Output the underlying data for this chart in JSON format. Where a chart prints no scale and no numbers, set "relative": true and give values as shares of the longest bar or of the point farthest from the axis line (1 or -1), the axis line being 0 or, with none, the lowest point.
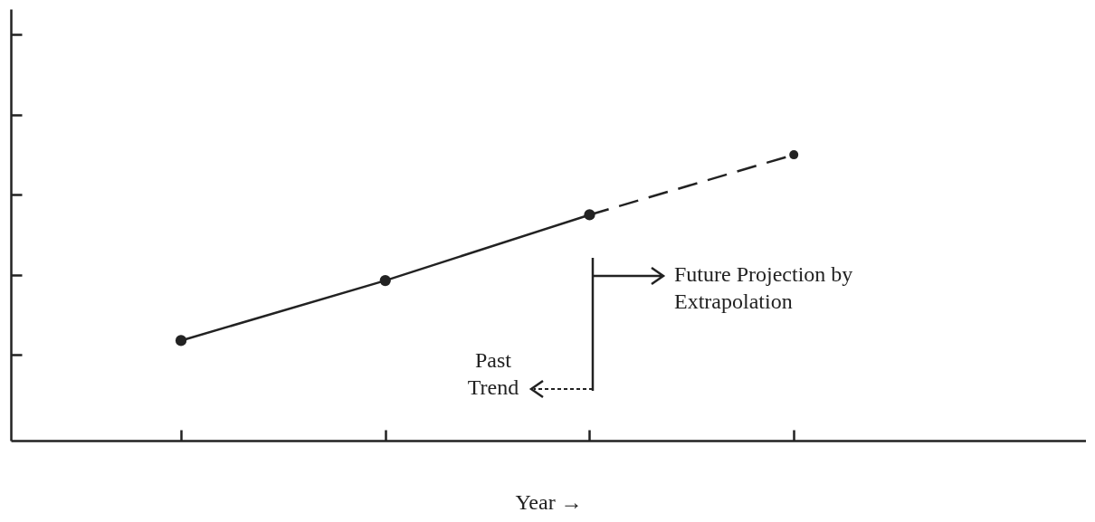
{
  "chart_data": {
    "type": "line",
    "relative": true,
    "xlabel": "Year →",
    "categories": [
      null,
      null,
      null,
      null
    ],
    "marker": "circle",
    "series": [
      {
        "color": "#222222",
        "line_style": "solid",
        "values": [
          0.35,
          0.56,
          0.79,
          null
        ]
      },
      {
        "color": "#222222",
        "line_style": "dashed",
        "values": [
          null,
          null,
          0.79,
          1
        ]
      }
    ],
    "annotations": [
      "Past Trend",
      "Future Projection by Extrapolation"
    ]
  }
}
